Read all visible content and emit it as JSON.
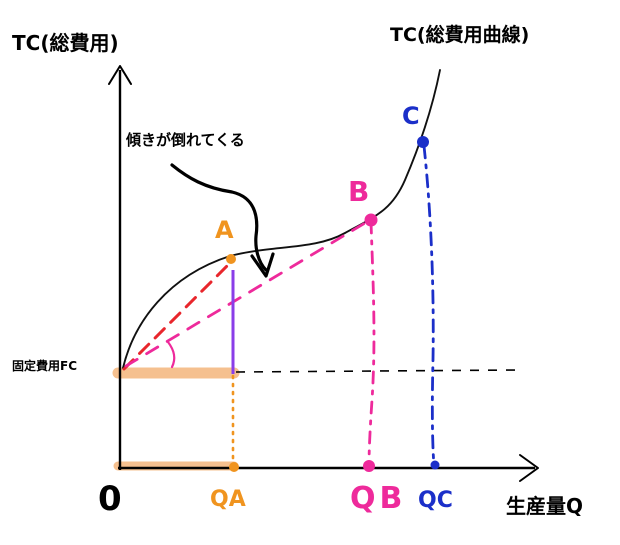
{
  "labels": {
    "y_axis": "TC(総費用)",
    "curve": "TC(総費用曲線)",
    "annotation": "傾きが倒れてくる",
    "fixed_cost": "固定費用FC",
    "origin": "0",
    "x_axis": "生産量Q",
    "point_a": "A",
    "point_b": "B",
    "point_c": "C",
    "qty_a": "QA",
    "qty_b": "QB",
    "qty_c": "QC"
  },
  "colors": {
    "axis": "#000000",
    "curve": "#111111",
    "fixed_cost_band": "#f5c08f",
    "a": "#f0941f",
    "b": "#ee2a9b",
    "c": "#1b2fc9",
    "red_dashed": "#e8262c",
    "purple": "#8a3ee8"
  }
}
